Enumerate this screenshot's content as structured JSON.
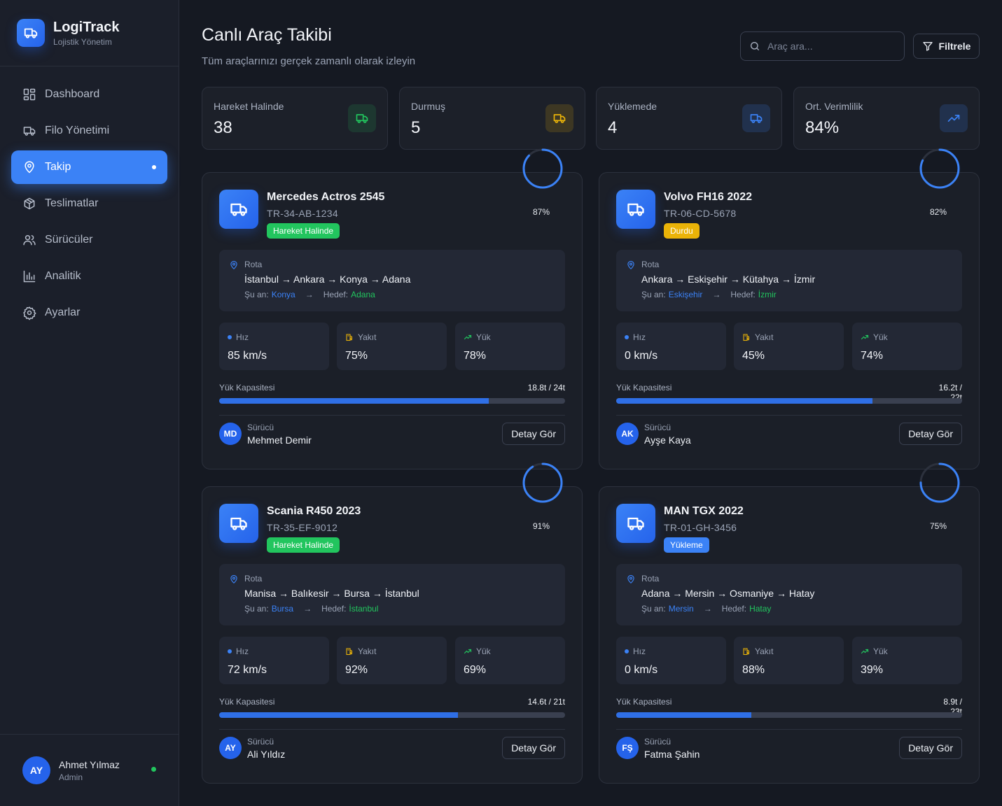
{
  "brand": {
    "name": "LogiTrack",
    "subtitle": "Lojistik Yönetim"
  },
  "nav": [
    {
      "label": "Dashboard",
      "icon": "grid-icon"
    },
    {
      "label": "Filo Yönetimi",
      "icon": "truck-icon"
    },
    {
      "label": "Takip",
      "icon": "map-pin-icon",
      "active": true
    },
    {
      "label": "Teslimatlar",
      "icon": "package-icon"
    },
    {
      "label": "Sürücüler",
      "icon": "users-icon"
    },
    {
      "label": "Analitik",
      "icon": "bar-chart-icon"
    },
    {
      "label": "Ayarlar",
      "icon": "gear-icon"
    }
  ],
  "user": {
    "initials": "AY",
    "name": "Ahmet Yılmaz",
    "role": "Admin",
    "online": true
  },
  "header": {
    "title": "Canlı Araç Takibi",
    "subtitle": "Tüm araçlarınızı gerçek zamanlı olarak izleyin",
    "search_placeholder": "Araç ara...",
    "filter_label": "Filtrele"
  },
  "stats": [
    {
      "label": "Hareket Halinde",
      "value": "38",
      "icon": "truck-icon",
      "color": "#22c55e"
    },
    {
      "label": "Durmuş",
      "value": "5",
      "icon": "truck-icon",
      "color": "#eab308"
    },
    {
      "label": "Yüklemede",
      "value": "4",
      "icon": "truck-icon",
      "color": "#3b82f6"
    },
    {
      "label": "Ort. Verimlilik",
      "value": "84%",
      "icon": "trending-up-icon",
      "color": "#3b82f6"
    }
  ],
  "colors": {
    "accent": "#3b82f6",
    "moving": "#22c55e",
    "stopped": "#eab308",
    "loading": "#3b82f6"
  },
  "labels": {
    "route": "Rota",
    "current": "Şu an:",
    "target": "Hedef:",
    "speed": "Hız",
    "fuel": "Yakıt",
    "load": "Yük",
    "capacity": "Yük Kapasitesi",
    "driver": "Sürücü",
    "detail": "Detay Gör"
  },
  "vehicles": [
    {
      "name": "Mercedes Actros 2545",
      "plate": "TR-34-AB-1234",
      "status": "Hareket Halinde",
      "status_color": "#22c55e",
      "efficiency": "87%",
      "route": "İstanbul → Ankara → Konya → Adana",
      "current": "Konya",
      "target": "Adana",
      "speed": "85 km/s",
      "fuel": "75%",
      "load": "78%",
      "capacity": "18.8t / 24t",
      "capacity_fraction": 0.78,
      "driver_initials": "MD",
      "driver": "Mehmet Demir"
    },
    {
      "name": "Volvo FH16 2022",
      "plate": "TR-06-CD-5678",
      "status": "Durdu",
      "status_color": "#eab308",
      "efficiency": "82%",
      "route": "Ankara → Eskişehir → Kütahya → İzmir",
      "current": "Eskişehir",
      "target": "İzmir",
      "speed": "0 km/s",
      "fuel": "45%",
      "load": "74%",
      "capacity": "16.2t / 22t",
      "capacity_fraction": 0.74,
      "driver_initials": "AK",
      "driver": "Ayşe Kaya"
    },
    {
      "name": "Scania R450 2023",
      "plate": "TR-35-EF-9012",
      "status": "Hareket Halinde",
      "status_color": "#22c55e",
      "efficiency": "91%",
      "route": "Manisa → Balıkesir → Bursa → İstanbul",
      "current": "Bursa",
      "target": "İstanbul",
      "speed": "72 km/s",
      "fuel": "92%",
      "load": "69%",
      "capacity": "14.6t / 21t",
      "capacity_fraction": 0.69,
      "driver_initials": "AY",
      "driver": "Ali Yıldız"
    },
    {
      "name": "MAN TGX 2022",
      "plate": "TR-01-GH-3456",
      "status": "Yükleme",
      "status_color": "#3b82f6",
      "efficiency": "75%",
      "route": "Adana → Mersin → Osmaniye → Hatay",
      "current": "Mersin",
      "target": "Hatay",
      "speed": "0 km/s",
      "fuel": "88%",
      "load": "39%",
      "capacity": "8.9t / 23t",
      "capacity_fraction": 0.39,
      "driver_initials": "FŞ",
      "driver": "Fatma Şahin"
    }
  ]
}
